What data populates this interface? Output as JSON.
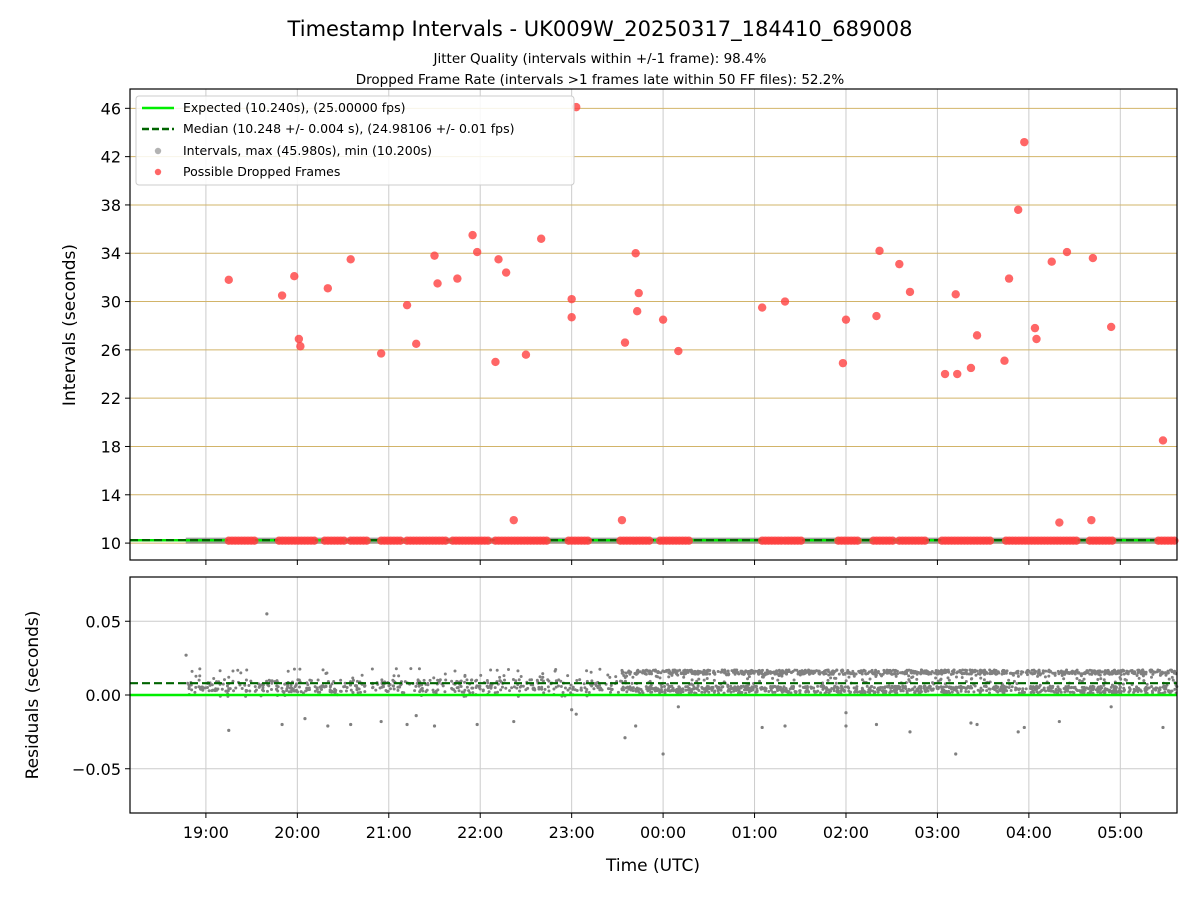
{
  "title": "Timestamp Intervals - UK009W_20250317_184410_689008",
  "subtitle_lines": [
    "Jitter Quality (intervals within +/-1 frame): 98.4%",
    "Dropped Frame Rate (intervals >1 frames late within 50 FF files): 52.2%"
  ],
  "xlabel": "Time (UTC)",
  "legend": {
    "placement": "top-left",
    "entries": [
      "Expected (10.240s), (25.00000 fps)",
      "Median (10.248 +/- 0.004 s), (24.98106 +/- 0.01 fps)",
      "Intervals, max (45.980s), min (10.200s)",
      "Possible Dropped Frames"
    ]
  },
  "colors": {
    "expected": "#00ee00",
    "median": "#006400",
    "intervals": "#808080",
    "dropped": "#ff4040",
    "hgrid_top": "#d2b469",
    "grid": "#cccccc"
  },
  "chart_data": [
    {
      "type": "scatter",
      "panel": "intervals",
      "ylabel": "Intervals (seconds)",
      "ylim": [
        8.6,
        47.6
      ],
      "yticks": [
        10,
        14,
        18,
        22,
        26,
        30,
        34,
        38,
        42,
        46
      ],
      "xlim_hours": [
        18.17,
        29.62
      ],
      "xticks": [
        "19:00",
        "20:00",
        "21:00",
        "22:00",
        "23:00",
        "00:00",
        "01:00",
        "02:00",
        "03:00",
        "04:00",
        "05:00"
      ],
      "grid": true,
      "expected_interval": 10.24,
      "median_interval": 10.248,
      "series": [
        {
          "name": "Possible Dropped Frames",
          "points": [
            [
              "19:15",
              31.8
            ],
            [
              "19:50",
              30.5
            ],
            [
              "19:58",
              32.1
            ],
            [
              "20:01",
              26.9
            ],
            [
              "20:02",
              26.3
            ],
            [
              "20:20",
              31.1
            ],
            [
              "20:35",
              33.5
            ],
            [
              "20:55",
              25.7
            ],
            [
              "21:12",
              29.7
            ],
            [
              "21:18",
              26.5
            ],
            [
              "21:30",
              33.8
            ],
            [
              "21:32",
              31.5
            ],
            [
              "21:45",
              31.9
            ],
            [
              "21:55",
              35.5
            ],
            [
              "21:58",
              34.1
            ],
            [
              "22:10",
              25.0
            ],
            [
              "22:12",
              33.5
            ],
            [
              "22:17",
              32.4
            ],
            [
              "22:22",
              11.9
            ],
            [
              "22:30",
              25.6
            ],
            [
              "22:40",
              35.2
            ],
            [
              "23:00",
              28.7
            ],
            [
              "23:00",
              30.2
            ],
            [
              "23:03",
              46.1
            ],
            [
              "23:33",
              11.9
            ],
            [
              "23:35",
              26.6
            ],
            [
              "23:42",
              34.0
            ],
            [
              "23:43",
              29.2
            ],
            [
              "23:44",
              30.7
            ],
            [
              "24:00",
              28.5
            ],
            [
              "24:10",
              25.9
            ],
            [
              "25:05",
              29.5
            ],
            [
              "25:20",
              30.0
            ],
            [
              "25:58",
              24.9
            ],
            [
              "26:00",
              28.5
            ],
            [
              "26:20",
              28.8
            ],
            [
              "26:22",
              34.2
            ],
            [
              "26:35",
              33.1
            ],
            [
              "26:42",
              30.8
            ],
            [
              "27:05",
              24.0
            ],
            [
              "27:12",
              30.6
            ],
            [
              "27:13",
              24.0
            ],
            [
              "27:22",
              24.5
            ],
            [
              "27:26",
              27.2
            ],
            [
              "27:44",
              25.1
            ],
            [
              "27:47",
              31.9
            ],
            [
              "27:53",
              37.6
            ],
            [
              "27:57",
              43.2
            ],
            [
              "28:04",
              27.8
            ],
            [
              "28:05",
              26.9
            ],
            [
              "28:15",
              33.3
            ],
            [
              "28:20",
              11.7
            ],
            [
              "28:25",
              34.1
            ],
            [
              "28:41",
              11.9
            ],
            [
              "28:42",
              33.6
            ],
            [
              "28:54",
              27.9
            ],
            [
              "29:28",
              18.5
            ]
          ]
        }
      ],
      "dropped_bands_at_10_2": [
        [
          "19:15",
          "19:32"
        ],
        [
          "19:48",
          "20:13"
        ],
        [
          "20:18",
          "20:32"
        ],
        [
          "20:35",
          "20:47"
        ],
        [
          "20:55",
          "21:08"
        ],
        [
          "21:12",
          "21:38"
        ],
        [
          "21:42",
          "22:07"
        ],
        [
          "22:10",
          "22:45"
        ],
        [
          "22:58",
          "23:12"
        ],
        [
          "23:32",
          "23:52"
        ],
        [
          "23:58",
          "24:18"
        ],
        [
          "25:05",
          "25:18"
        ],
        [
          "25:20",
          "25:32"
        ],
        [
          "25:55",
          "26:08"
        ],
        [
          "26:18",
          "26:32"
        ],
        [
          "26:35",
          "26:52"
        ],
        [
          "27:03",
          "27:35"
        ],
        [
          "27:45",
          "28:32"
        ],
        [
          "28:40",
          "28:56"
        ],
        [
          "29:25",
          "29:37"
        ]
      ]
    },
    {
      "type": "scatter",
      "panel": "residuals",
      "ylabel": "Residuals (seconds)",
      "ylim": [
        -0.08,
        0.08
      ],
      "yticks": [
        0.05,
        0.0,
        -0.05
      ],
      "ytick_labels": [
        "0.05",
        "0.00",
        "−0.05"
      ],
      "grid": true,
      "expected_residual": 0.0,
      "median_residual": 0.008,
      "outliers": [
        [
          "18:47",
          0.027
        ],
        [
          "19:15",
          -0.024
        ],
        [
          "19:40",
          0.055
        ],
        [
          "19:50",
          -0.02
        ],
        [
          "20:05",
          -0.016
        ],
        [
          "20:20",
          -0.021
        ],
        [
          "20:35",
          -0.02
        ],
        [
          "20:55",
          -0.018
        ],
        [
          "21:12",
          -0.02
        ],
        [
          "21:18",
          -0.014
        ],
        [
          "21:30",
          -0.021
        ],
        [
          "21:58",
          -0.02
        ],
        [
          "22:22",
          -0.018
        ],
        [
          "23:00",
          -0.01
        ],
        [
          "23:03",
          -0.013
        ],
        [
          "23:35",
          -0.029
        ],
        [
          "23:42",
          -0.021
        ],
        [
          "24:00",
          -0.04
        ],
        [
          "24:10",
          -0.008
        ],
        [
          "25:05",
          -0.022
        ],
        [
          "25:20",
          -0.021
        ],
        [
          "26:00",
          -0.012
        ],
        [
          "26:00",
          -0.021
        ],
        [
          "26:20",
          -0.02
        ],
        [
          "26:42",
          -0.025
        ],
        [
          "27:12",
          -0.04
        ],
        [
          "27:22",
          -0.019
        ],
        [
          "27:26",
          -0.02
        ],
        [
          "27:53",
          -0.025
        ],
        [
          "27:57",
          -0.022
        ],
        [
          "28:20",
          -0.018
        ],
        [
          "28:54",
          -0.008
        ],
        [
          "29:28",
          -0.022
        ]
      ],
      "dense_regime_change": "23:33"
    }
  ]
}
